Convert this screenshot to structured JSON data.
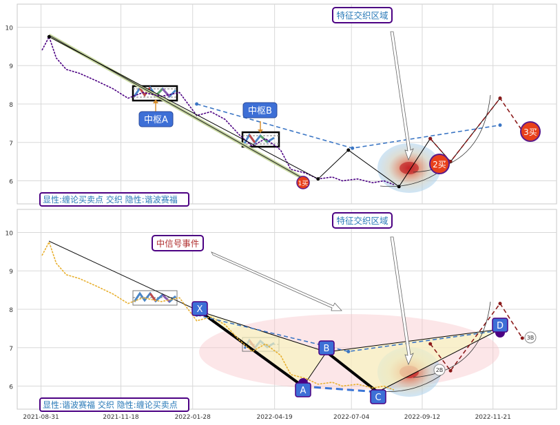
{
  "chart_data": [
    {
      "type": "line",
      "panel": "top",
      "ylim": [
        5.4,
        10.6
      ],
      "yticks": [
        6,
        7,
        8,
        9,
        10
      ],
      "grid": true,
      "series": [
        {
          "color": "#4b0082",
          "style": "dashed",
          "points": [
            [
              "2021-09-01",
              9.4
            ],
            [
              "2021-09-08",
              9.75
            ],
            [
              "2021-09-15",
              9.2
            ],
            [
              "2021-09-25",
              8.9
            ],
            [
              "2021-10-08",
              8.8
            ],
            [
              "2021-10-25",
              8.6
            ],
            [
              "2021-11-10",
              8.4
            ],
            [
              "2021-11-25",
              8.15
            ],
            [
              "2021-12-10",
              8.3
            ],
            [
              "2021-12-28",
              8.2
            ],
            [
              "2022-01-15",
              8.3
            ],
            [
              "2022-02-01",
              7.7
            ],
            [
              "2022-02-15",
              7.8
            ],
            [
              "2022-03-01",
              7.6
            ],
            [
              "2022-03-15",
              7.2
            ],
            [
              "2022-03-28",
              6.9
            ],
            [
              "2022-04-10",
              7.1
            ],
            [
              "2022-04-25",
              6.8
            ],
            [
              "2022-05-05",
              6.3
            ],
            [
              "2022-05-20",
              6.2
            ],
            [
              "2022-06-01",
              6.05
            ],
            [
              "2022-06-15",
              6.1
            ],
            [
              "2022-06-25",
              6.0
            ],
            [
              "2022-07-10",
              6.05
            ],
            [
              "2022-07-25",
              5.95
            ],
            [
              "2022-08-05",
              6.0
            ],
            [
              "2022-08-15",
              5.9
            ]
          ]
        },
        {
          "color": "#000000",
          "style": "solid",
          "points": [
            [
              "2021-09-08",
              9.75
            ],
            [
              "2022-06-01",
              6.05
            ],
            [
              "2022-07-01",
              6.8
            ],
            [
              "2022-08-20",
              5.85
            ],
            [
              "2022-09-20",
              7.1
            ],
            [
              "2022-10-10",
              6.5
            ],
            [
              "2022-11-28",
              8.15
            ]
          ]
        },
        {
          "color": "#8b1a1a",
          "style": "dashed",
          "points": [
            [
              "2022-09-20",
              7.1
            ],
            [
              "2022-10-10",
              6.5
            ],
            [
              "2022-11-28",
              8.15
            ],
            [
              "2022-12-20",
              7.3
            ]
          ]
        },
        {
          "color": "#3a75c4",
          "style": "dashed",
          "points": [
            [
              "2022-02-01",
              8.0
            ],
            [
              "2022-07-05",
              6.85
            ],
            [
              "2022-11-28",
              7.45
            ]
          ]
        }
      ],
      "annotations": [
        {
          "text": "中枢A",
          "x": "2022-01-05",
          "y": 7.6
        },
        {
          "text": "中枢B",
          "x": "2022-04-15",
          "y": 7.8
        },
        {
          "text": "特征交织区域",
          "x": "2022-08-25",
          "y": 10.4
        },
        {
          "text": "1买",
          "x": "2022-06-01",
          "y": 5.95
        },
        {
          "text": "2买",
          "x": "2022-10-10",
          "y": 6.45
        },
        {
          "text": "3买",
          "x": "2022-12-20",
          "y": 7.3
        }
      ],
      "legend_text": "显性:缠论买卖点 交织 隐性:谐波赛福"
    },
    {
      "type": "line",
      "panel": "bottom",
      "ylim": [
        5.4,
        10.6
      ],
      "yticks": [
        6,
        7,
        8,
        9,
        10
      ],
      "grid": true,
      "series": [
        {
          "color": "#e8b030",
          "style": "dashed",
          "points": [
            [
              "2021-09-01",
              9.4
            ],
            [
              "2021-09-08",
              9.75
            ],
            [
              "2021-09-15",
              9.2
            ],
            [
              "2021-09-25",
              8.9
            ],
            [
              "2021-10-08",
              8.8
            ],
            [
              "2021-10-25",
              8.6
            ],
            [
              "2021-11-10",
              8.4
            ],
            [
              "2021-11-25",
              8.15
            ],
            [
              "2021-12-10",
              8.3
            ],
            [
              "2021-12-28",
              8.2
            ],
            [
              "2022-01-15",
              8.3
            ],
            [
              "2022-02-01",
              7.7
            ],
            [
              "2022-02-15",
              7.8
            ],
            [
              "2022-03-01",
              7.6
            ],
            [
              "2022-03-15",
              7.2
            ],
            [
              "2022-03-28",
              6.9
            ],
            [
              "2022-04-10",
              7.1
            ],
            [
              "2022-04-25",
              6.8
            ],
            [
              "2022-05-05",
              6.3
            ],
            [
              "2022-05-20",
              6.2
            ],
            [
              "2022-06-01",
              6.05
            ],
            [
              "2022-06-15",
              6.1
            ],
            [
              "2022-06-25",
              6.0
            ],
            [
              "2022-07-10",
              6.05
            ],
            [
              "2022-07-25",
              5.95
            ],
            [
              "2022-08-05",
              6.0
            ],
            [
              "2022-08-15",
              5.9
            ]
          ]
        },
        {
          "color": "#3a75c4",
          "style": "dashed",
          "points": [
            [
              "2022-02-01",
              7.85
            ],
            [
              "2022-07-01",
              6.9
            ],
            [
              "2022-11-28",
              7.45
            ]
          ]
        },
        {
          "color": "#8b1a1a",
          "style": "dashed",
          "points": [
            [
              "2022-09-20",
              7.1
            ],
            [
              "2022-10-10",
              6.4
            ],
            [
              "2022-11-28",
              8.15
            ],
            [
              "2022-12-20",
              7.25
            ]
          ]
        }
      ],
      "points": [
        {
          "label": "X",
          "x": "2022-02-01",
          "y": 7.85
        },
        {
          "label": "A",
          "x": "2022-06-01",
          "y": 6.05
        },
        {
          "label": "B",
          "x": "2022-07-01",
          "y": 6.85
        },
        {
          "label": "C",
          "x": "2022-08-15",
          "y": 5.85
        },
        {
          "label": "D",
          "x": "2022-11-28",
          "y": 7.45
        }
      ],
      "annotations": [
        {
          "text": "中信号事件",
          "x": "2022-01-05",
          "y": 9.7
        },
        {
          "text": "特征交织区域",
          "x": "2022-08-25",
          "y": 10.4
        },
        {
          "text": "2B",
          "x": "2022-10-20",
          "y": 6.4
        },
        {
          "text": "3B",
          "x": "2022-12-20",
          "y": 7.25
        }
      ],
      "legend_text": "显性:谐波赛福 交织 隐性:缠论买卖点"
    }
  ],
  "x_axis": {
    "ticks": [
      "2021-08-31",
      "2021-11-18",
      "2022-01-28",
      "2022-04-19",
      "2022-07-04",
      "2022-09-12",
      "2022-11-21"
    ]
  }
}
